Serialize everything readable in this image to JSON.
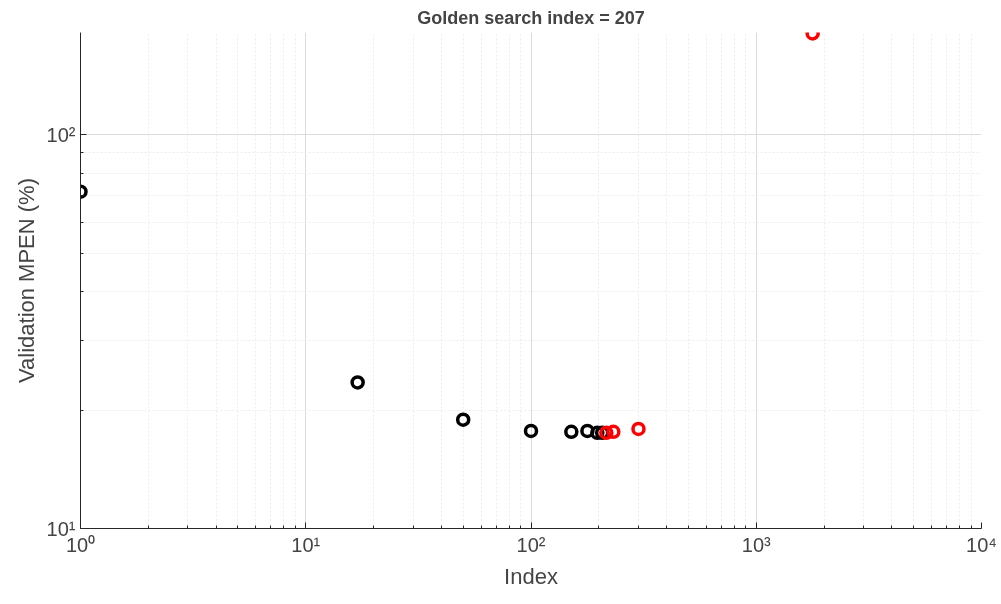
{
  "chart_data": {
    "type": "scatter",
    "title": "Golden search index = 207",
    "xlabel": "Index",
    "ylabel": "Validation MPEN (%)",
    "log": "xy",
    "grid": true,
    "marker": "circle",
    "xlim": [
      1,
      10000
    ],
    "ylim": [
      10,
      182
    ],
    "xticks": [
      {
        "value": 1,
        "label": "10⁰"
      },
      {
        "value": 10,
        "label": "10¹"
      },
      {
        "value": 100,
        "label": "10²"
      },
      {
        "value": 1000,
        "label": "10³"
      },
      {
        "value": 10000,
        "label": "10⁴"
      }
    ],
    "yticks": [
      {
        "value": 10,
        "label": "10¹"
      },
      {
        "value": 100,
        "label": "10²"
      }
    ],
    "series": [
      {
        "color": "#000000",
        "x": [
          1,
          17,
          50,
          100,
          151,
          178,
          197,
          207
        ],
        "values": [
          71.7,
          23.5,
          18.9,
          17.7,
          17.6,
          17.7,
          17.5,
          17.5
        ]
      },
      {
        "color": "#ff0000",
        "x": [
          216,
          232,
          300,
          1780
        ],
        "values": [
          17.5,
          17.6,
          17.9,
          181
        ]
      }
    ]
  }
}
